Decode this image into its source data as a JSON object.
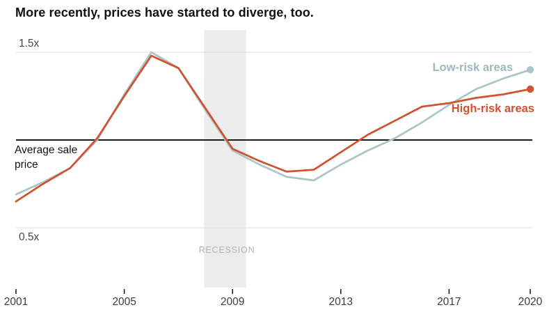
{
  "title": "More recently, prices have started to diverge, too.",
  "chart_data": {
    "type": "line",
    "x": [
      2001,
      2002,
      2003,
      2004,
      2005,
      2006,
      2007,
      2008,
      2009,
      2010,
      2011,
      2012,
      2013,
      2014,
      2015,
      2016,
      2017,
      2018,
      2019,
      2020
    ],
    "series": [
      {
        "name": "Low-risk areas",
        "color": "#aac6c8",
        "label_color": "#9db9bd",
        "values": [
          0.69,
          0.76,
          0.84,
          1.0,
          1.26,
          1.5,
          1.41,
          1.17,
          0.94,
          0.86,
          0.79,
          0.77,
          0.86,
          0.94,
          1.01,
          1.1,
          1.2,
          1.29,
          1.35,
          1.4
        ]
      },
      {
        "name": "High-risk areas",
        "color": "#d0532f",
        "label_color": "#d0532f",
        "values": [
          0.65,
          0.75,
          0.84,
          1.01,
          1.25,
          1.48,
          1.41,
          1.18,
          0.95,
          0.88,
          0.82,
          0.83,
          0.93,
          1.03,
          1.11,
          1.19,
          1.21,
          1.24,
          1.26,
          1.29
        ]
      }
    ],
    "x_tick_years": [
      2001,
      2005,
      2009,
      2013,
      2017,
      2020
    ],
    "x_tick_labels": [
      "2001",
      "2005",
      "2009",
      "2013",
      "2017",
      "2020"
    ],
    "y_tick_labels": {
      "top": "1.5x",
      "bottom": "0.5x"
    },
    "y_tick_values": {
      "top": 1.5,
      "bottom": 0.5
    },
    "baseline_value": 1.0,
    "baseline_label": "Average sale price",
    "recession_label": "RECESSION",
    "recession_span": {
      "start_year": 2007.95,
      "end_year": 2009.5
    },
    "xlim": [
      2001,
      2020
    ],
    "ylim": [
      0.5,
      1.5
    ],
    "grid": "horizontal lines at 0.5x, 1.0x, 1.5x only",
    "legend_position": "inline labels near line endpoints, right side"
  },
  "colors": {
    "title": "#121212",
    "axis_label": "#474747",
    "tick_label": "#3d3d3d",
    "tick_mark": "#121212",
    "gridline": "#dcdcdc",
    "baseline": "#1a1a1a",
    "recession_band": "#ececec",
    "recession_label": "#b4b4b4",
    "background": "#ffffff",
    "low_risk": "#aac6c8",
    "high_risk": "#d0532f"
  }
}
